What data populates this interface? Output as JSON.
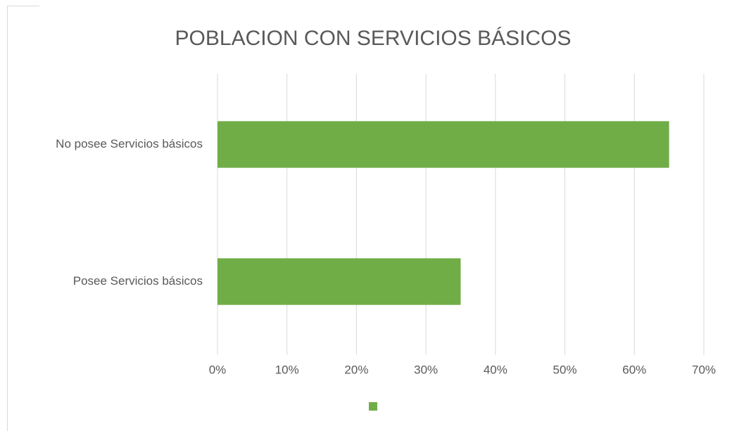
{
  "chart_data": {
    "type": "bar",
    "orientation": "horizontal",
    "title": "POBLACION CON SERVICIOS BÁSICOS",
    "categories": [
      "No posee Servicios básicos",
      "Posee Servicios básicos"
    ],
    "values": [
      65,
      35
    ],
    "color": "#70ad47",
    "xlim": [
      0,
      70
    ],
    "xticks": [
      {
        "value": 0,
        "label": "0%"
      },
      {
        "value": 10,
        "label": "10%"
      },
      {
        "value": 20,
        "label": "20%"
      },
      {
        "value": 30,
        "label": "30%"
      },
      {
        "value": 40,
        "label": "40%"
      },
      {
        "value": 50,
        "label": "50%"
      },
      {
        "value": 60,
        "label": "60%"
      },
      {
        "value": 70,
        "label": "70%"
      }
    ],
    "grid": true,
    "legend": "bottom"
  }
}
